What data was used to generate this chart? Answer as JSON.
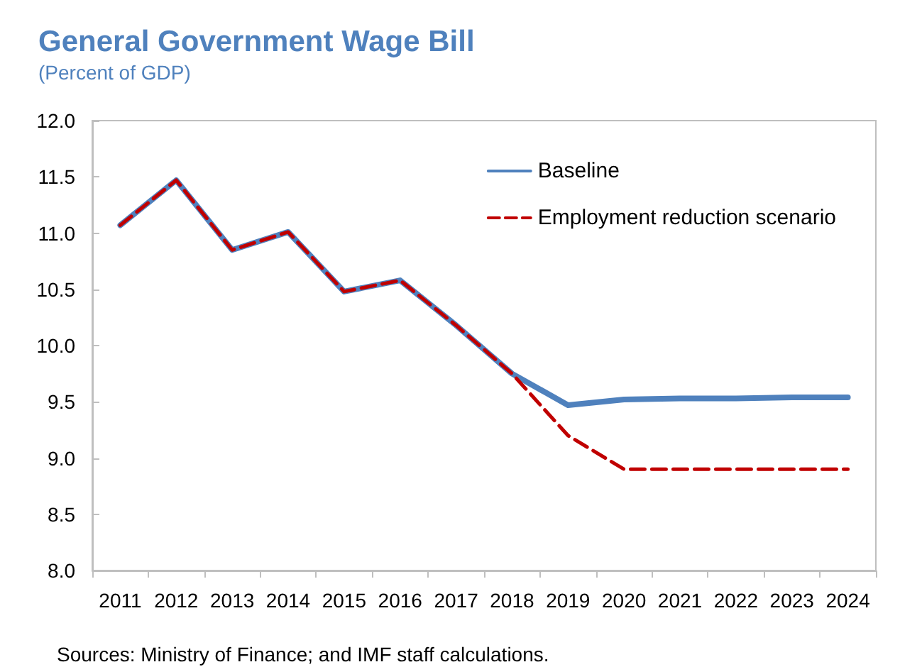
{
  "chart_data": {
    "type": "line",
    "title": "General Government Wage Bill",
    "subtitle": "(Percent of GDP)",
    "categories": [
      "2011",
      "2012",
      "2013",
      "2014",
      "2015",
      "2016",
      "2017",
      "2018",
      "2019",
      "2020",
      "2021",
      "2022",
      "2023",
      "2024"
    ],
    "series": [
      {
        "name": "Baseline",
        "color": "#4f81bd",
        "line_style": "solid",
        "values": [
          11.07,
          11.47,
          10.85,
          11.01,
          10.48,
          10.58,
          10.18,
          9.75,
          9.47,
          9.52,
          9.53,
          9.53,
          9.54,
          9.54
        ]
      },
      {
        "name": "Employment reduction scenario",
        "color": "#c00000",
        "line_style": "dashed",
        "values": [
          11.07,
          11.47,
          10.85,
          11.01,
          10.48,
          10.58,
          10.18,
          9.75,
          9.2,
          8.9,
          8.9,
          8.9,
          8.9,
          8.9
        ]
      }
    ],
    "ylim": [
      8.0,
      12.0
    ],
    "yticks": [
      {
        "value": 8,
        "label": "8.0"
      },
      8.5,
      {
        "value": 9,
        "label": "9.0"
      },
      9.5,
      {
        "value": 10,
        "label": "10.0"
      },
      10.5,
      {
        "value": 11,
        "label": "11.0"
      },
      11.5,
      {
        "value": 12,
        "label": "12.0"
      }
    ],
    "grid": false,
    "legend": "top right",
    "marker": "none",
    "annotations": [
      "Sources: Ministry of Finance; and IMF staff calculations."
    ]
  }
}
